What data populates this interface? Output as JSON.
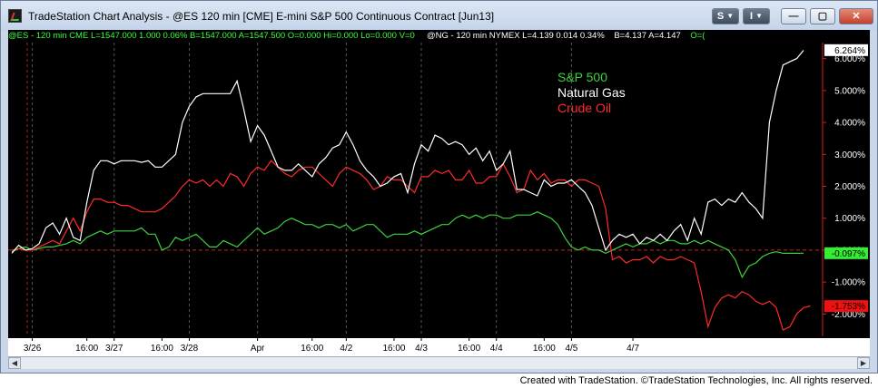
{
  "window": {
    "title": "TradeStation Chart Analysis - @ES 120 min [CME] E-mini S&P 500 Continuous Contract [Jun13]",
    "buttons": {
      "style": "S",
      "indicator": "I",
      "minimize": "—",
      "maximize": "▢",
      "close": "✕"
    }
  },
  "status_line": {
    "es": "@ES - 120 min  CME  L=1547.000  1.000  0.06%   B=1547.000   A=1547.500   O=0.000   Hi=0.000   Lo=0.000   V=0",
    "ng": "@NG - 120 min  NYMEX  L=4.139  0.014  0.34%",
    "ng_ba": "B=4.137   A=4.147",
    "ng_o": "O=("
  },
  "legend": [
    {
      "name": "S&P 500",
      "color": "#3cd23c"
    },
    {
      "name": "Natural Gas",
      "color": "#ffffff"
    },
    {
      "name": "Crude Oil",
      "color": "#ff2a2a"
    }
  ],
  "badges": [
    {
      "text": "6.264%",
      "value": 6.264,
      "bg": "#ffffff",
      "fg": "#000000"
    },
    {
      "text": "-0.097%",
      "value": -0.097,
      "bg": "#33ee33",
      "fg": "#000000"
    },
    {
      "text": "-1.753%",
      "value": -1.753,
      "bg": "#ee1111",
      "fg": "#000000"
    }
  ],
  "credit": "Created with TradeStation. ©TradeStation Technologies, Inc. All rights reserved.",
  "chart_data": {
    "type": "line",
    "ylim": [
      -2.7,
      6.5
    ],
    "yticks": [
      "6.000%",
      "5.000%",
      "4.000%",
      "3.000%",
      "2.000%",
      "1.000%",
      "0.000%",
      "-1.000%",
      "-2.000%"
    ],
    "ytick_values": [
      6,
      5,
      4,
      3,
      2,
      1,
      0,
      -1,
      -2
    ],
    "grid": false,
    "xlabels": [
      "3/26",
      "16:00",
      "3/27",
      "16:00",
      "3/28",
      "Apr",
      "16:00",
      "4/2",
      "16:00",
      "4/3",
      "16:00",
      "4/4",
      "16:00",
      "4/5",
      "4/7"
    ],
    "xlabel_index": [
      3,
      11,
      15,
      22,
      26,
      36,
      44,
      49,
      56,
      60,
      67,
      71,
      78,
      82,
      91
    ],
    "session_lines": [
      3,
      15,
      26,
      36,
      49,
      60,
      71,
      82
    ],
    "series": [
      {
        "name": "Natural Gas",
        "color": "#ffffff",
        "values": [
          -0.1,
          0.15,
          0.0,
          0.05,
          0.2,
          0.7,
          0.85,
          0.5,
          1.0,
          0.4,
          0.3,
          1.5,
          2.5,
          2.8,
          2.8,
          2.7,
          2.8,
          2.8,
          2.8,
          2.75,
          2.8,
          2.6,
          2.6,
          2.8,
          3.0,
          4.0,
          4.5,
          4.8,
          4.9,
          4.9,
          4.9,
          4.9,
          4.9,
          5.3,
          4.4,
          3.4,
          3.9,
          3.6,
          3.1,
          2.6,
          2.5,
          2.5,
          2.7,
          2.5,
          2.3,
          2.7,
          2.9,
          3.2,
          3.3,
          3.7,
          3.3,
          2.8,
          2.5,
          2.3,
          2.0,
          2.1,
          2.3,
          2.4,
          1.8,
          2.7,
          3.3,
          3.1,
          3.6,
          3.5,
          3.3,
          3.4,
          3.3,
          3.0,
          3.2,
          2.8,
          3.1,
          2.5,
          2.7,
          3.1,
          1.9,
          1.9,
          1.8,
          1.7,
          2.2,
          2.0,
          2.1,
          2.1,
          2.2,
          2.0,
          1.8,
          1.4,
          0.7,
          0.0,
          0.3,
          0.5,
          0.4,
          0.5,
          0.2,
          0.4,
          0.3,
          0.5,
          0.3,
          0.6,
          0.8,
          0.3,
          1.0,
          0.5,
          1.5,
          1.6,
          1.4,
          1.6,
          1.5,
          1.8,
          1.5,
          1.3,
          1.0,
          4.0,
          5.0,
          5.8,
          5.9,
          6.0,
          6.26
        ]
      },
      {
        "name": "Crude Oil",
        "color": "#ff2a2a",
        "values": [
          0.0,
          0.05,
          0.0,
          0.0,
          0.1,
          0.2,
          0.3,
          0.2,
          0.6,
          1.0,
          0.6,
          1.2,
          1.6,
          1.6,
          1.5,
          1.5,
          1.4,
          1.4,
          1.3,
          1.2,
          1.2,
          1.2,
          1.3,
          1.5,
          1.7,
          2.0,
          2.2,
          2.1,
          2.2,
          2.0,
          2.2,
          2.0,
          2.4,
          2.3,
          2.0,
          2.4,
          2.6,
          2.5,
          2.8,
          2.6,
          2.4,
          2.3,
          2.5,
          2.6,
          2.6,
          2.4,
          2.2,
          2.0,
          2.4,
          2.6,
          2.5,
          2.4,
          2.2,
          1.9,
          2.0,
          2.3,
          2.2,
          2.2,
          2.0,
          1.8,
          2.3,
          2.3,
          2.5,
          2.4,
          2.5,
          2.2,
          2.2,
          2.5,
          2.1,
          2.1,
          2.3,
          2.3,
          2.7,
          2.3,
          1.8,
          1.9,
          2.5,
          2.2,
          2.4,
          2.1,
          2.2,
          2.2,
          2.0,
          2.2,
          2.2,
          2.1,
          2.0,
          1.3,
          -0.3,
          -0.2,
          -0.4,
          -0.3,
          -0.3,
          -0.2,
          -0.4,
          -0.2,
          -0.3,
          -0.3,
          -0.2,
          -0.3,
          -0.4,
          -1.3,
          -2.4,
          -1.8,
          -1.5,
          -1.4,
          -1.5,
          -1.3,
          -1.4,
          -1.6,
          -1.7,
          -1.6,
          -1.8,
          -2.5,
          -2.4,
          -2.0,
          -1.8,
          -1.75
        ]
      },
      {
        "name": "S&P 500",
        "color": "#3cd23c",
        "values": [
          -0.05,
          0.05,
          0.1,
          0.0,
          0.05,
          0.1,
          0.1,
          0.15,
          0.2,
          0.3,
          0.2,
          0.4,
          0.5,
          0.6,
          0.5,
          0.6,
          0.6,
          0.6,
          0.6,
          0.7,
          0.5,
          0.5,
          0.0,
          0.1,
          0.4,
          0.3,
          0.4,
          0.5,
          0.3,
          0.1,
          0.1,
          0.3,
          0.2,
          0.1,
          0.3,
          0.5,
          0.7,
          0.5,
          0.6,
          0.7,
          0.9,
          1.0,
          0.9,
          0.8,
          0.8,
          0.7,
          0.8,
          0.8,
          0.7,
          0.8,
          0.6,
          0.7,
          0.8,
          0.8,
          0.6,
          0.4,
          0.5,
          0.5,
          0.5,
          0.6,
          0.5,
          0.6,
          0.7,
          0.8,
          0.8,
          1.0,
          1.1,
          1.0,
          1.1,
          1.0,
          1.1,
          1.1,
          1.0,
          1.0,
          1.1,
          1.1,
          1.1,
          1.2,
          1.1,
          1.0,
          0.8,
          0.4,
          0.1,
          0.0,
          0.1,
          0.0,
          0.0,
          -0.1,
          0.0,
          0.1,
          0.2,
          0.1,
          0.2,
          0.2,
          0.3,
          0.2,
          0.3,
          0.3,
          0.2,
          0.2,
          0.3,
          0.2,
          0.3,
          0.2,
          0.1,
          0.0,
          -0.3,
          -0.85,
          -0.5,
          -0.4,
          -0.2,
          -0.1,
          -0.05,
          -0.1,
          -0.1,
          -0.1,
          -0.097
        ]
      }
    ]
  }
}
